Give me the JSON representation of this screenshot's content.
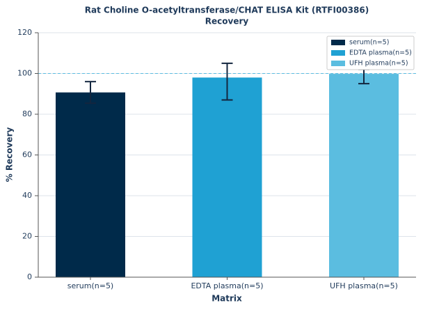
{
  "chart_data": {
    "type": "bar",
    "title": "Rat Choline O-acetyltransferase/CHAT ELISA Kit (RTFI00386)",
    "subtitle": "Recovery",
    "x_label": "Matrix",
    "y_label": "% Recovery",
    "categories": [
      "serum(n=5)",
      "EDTA plasma(n=5)",
      "UFH plasma(n=5)"
    ],
    "values": [
      90.7,
      98,
      99.8
    ],
    "errors_minus": [
      5.3,
      11,
      4.8
    ],
    "errors_plus": [
      5.3,
      7,
      2.2
    ],
    "colors": [
      "#002a4a",
      "#1fa1d3",
      "#5bbde0"
    ],
    "reference_line": 100,
    "ylim": [
      0,
      120
    ],
    "yticks": [
      0,
      20,
      40,
      60,
      80,
      100,
      120
    ],
    "grid": true,
    "legend": "upper right"
  }
}
